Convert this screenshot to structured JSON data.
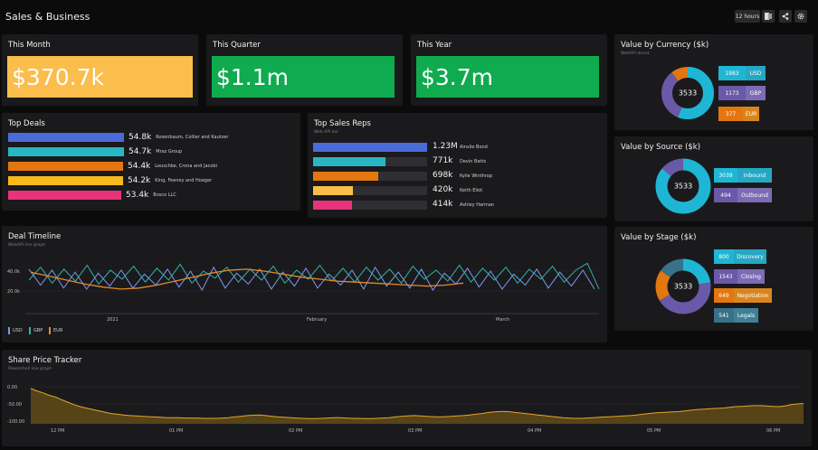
{
  "header": {
    "title": "Sales & Business",
    "time_range": "12 hours"
  },
  "colors": {
    "yellow": "#fbbd4c",
    "green": "#10ab4f",
    "blue": "#4b6bd9",
    "teal": "#28b7c2",
    "orange": "#e4760f",
    "amber": "#f7b91e",
    "pink": "#e8327a",
    "cyan": "#1fb6d5",
    "purple": "#6a59a8",
    "slate": "#37718a"
  },
  "kpis": [
    {
      "title": "This Month",
      "value": "$370.7k"
    },
    {
      "title": "This Quarter",
      "value": "$1.1m"
    },
    {
      "title": "This Year",
      "value": "$3.7m"
    }
  ],
  "top_deals": {
    "title": "Top Deals",
    "items": [
      {
        "value": "54.8k",
        "name": "Rosenbaum, Collier and Kautzer",
        "fraction": 1.0
      },
      {
        "value": "54.7k",
        "name": "Mraz Group",
        "fraction": 0.99
      },
      {
        "value": "54.4k",
        "name": "Leuschke, Crona and Jacobi",
        "fraction": 0.98
      },
      {
        "value": "54.2k",
        "name": "King, Feeney and Hoeger",
        "fraction": 0.97
      },
      {
        "value": "53.4k",
        "name": "Bosco LLC",
        "fraction": 0.96
      }
    ]
  },
  "top_reps": {
    "title": "Top Sales Reps",
    "subtitle": "Web API bar",
    "items": [
      {
        "value": "1.23M",
        "name": "Ainslie Bond",
        "fraction": 1.0
      },
      {
        "value": "771k",
        "name": "Devin Batts",
        "fraction": 0.63
      },
      {
        "value": "698k",
        "name": "Kylie Winthrop",
        "fraction": 0.57
      },
      {
        "value": "420k",
        "name": "Keith Eliot",
        "fraction": 0.35
      },
      {
        "value": "414k",
        "name": "Ashley Harman",
        "fraction": 0.34
      }
    ]
  },
  "currency": {
    "title": "Value by Currency ($k)",
    "subtitle": "WebAPI donut",
    "total": "3533",
    "items": [
      {
        "value": "1983",
        "label": "USD"
      },
      {
        "value": "1173",
        "label": "GBP"
      },
      {
        "value": "377",
        "label": "EUR"
      }
    ]
  },
  "source": {
    "title": "Value by Source ($k)",
    "total": "3533",
    "items": [
      {
        "value": "3039",
        "label": "Inbound"
      },
      {
        "value": "494",
        "label": "Outbound"
      }
    ]
  },
  "stage": {
    "title": "Value by Stage ($k)",
    "total": "3533",
    "items": [
      {
        "value": "800",
        "label": "Discovery"
      },
      {
        "value": "1543",
        "label": "Closing"
      },
      {
        "value": "649",
        "label": "Negotiation"
      },
      {
        "value": "541",
        "label": "Legals"
      }
    ]
  },
  "timeline": {
    "title": "Deal Timeline",
    "subtitle": "WebAPI line graph",
    "yticks": [
      "40.0k",
      "20.0k"
    ],
    "xticks": [
      "2021",
      "February",
      "March"
    ],
    "legend": [
      "USD",
      "GBP",
      "EUR"
    ]
  },
  "share": {
    "title": "Share Price Tracker",
    "subtitle": "Powershell line graph",
    "yticks": [
      "0.00",
      "-50.00",
      "-100.00"
    ],
    "xticks": [
      "12 PM",
      "01 PM",
      "02 PM",
      "03 PM",
      "04 PM",
      "05 PM",
      "06 PM"
    ]
  },
  "chart_data": [
    {
      "type": "line",
      "title": "Deal Timeline",
      "x_range": [
        "2021-01-01",
        "2021-03-31"
      ],
      "ylim": [
        10000,
        50000
      ],
      "series": [
        {
          "name": "USD",
          "values": [
            41000,
            25000,
            40000,
            22000,
            38000,
            21000,
            37000,
            24000,
            40000,
            22000,
            36000,
            25000,
            41000,
            23000,
            39000,
            20000,
            43000,
            22000,
            37000,
            26000,
            41000,
            21000,
            38000,
            24000,
            42000,
            22000,
            36000,
            25000,
            40000,
            21000,
            43000,
            24000,
            38000,
            22000,
            41000,
            20000,
            37000,
            26000,
            42000,
            23000,
            39000,
            21000,
            36000,
            25000,
            41000,
            22000,
            38000,
            24000,
            40000,
            21000
          ]
        },
        {
          "name": "GBP",
          "values": [
            30000,
            43000,
            27000,
            41000,
            29000,
            45000,
            26000,
            40000,
            31000,
            44000,
            28000,
            42000,
            30000,
            46000,
            27000,
            39000,
            32000,
            43000,
            28000,
            41000,
            30000,
            44000,
            27000,
            40000,
            31000,
            45000,
            29000,
            42000,
            28000,
            43000,
            30000,
            41000,
            27000,
            44000,
            31000,
            40000,
            29000,
            45000,
            28000,
            42000,
            30000,
            43000,
            27000,
            41000,
            31000,
            44000,
            28000,
            40000,
            47000,
            21000
          ]
        },
        {
          "name": "EUR",
          "values": [
            38000,
            34000,
            30000,
            26000,
            23000,
            21000,
            22000,
            25000,
            29000,
            33000,
            37000,
            40000,
            41000,
            39000,
            36000,
            33000,
            31000,
            29000,
            28000,
            27000,
            26000,
            25000,
            24000,
            25000,
            27000
          ]
        }
      ]
    },
    {
      "type": "area",
      "title": "Share Price Tracker",
      "x_range": [
        "11:30",
        "18:25"
      ],
      "ylim": [
        -110,
        10
      ],
      "series": [
        {
          "name": "Share price",
          "values": [
            -5,
            -12,
            -18,
            -25,
            -30,
            -38,
            -45,
            -52,
            -58,
            -62,
            -66,
            -70,
            -74,
            -78,
            -80,
            -82,
            -84,
            -85,
            -86,
            -87,
            -88,
            -89,
            -90,
            -90,
            -90,
            -91,
            -91,
            -91,
            -92,
            -92,
            -92,
            -91,
            -90,
            -88,
            -86,
            -84,
            -83,
            -82,
            -84,
            -86,
            -88,
            -89,
            -90,
            -91,
            -92,
            -93,
            -93,
            -92,
            -91,
            -90,
            -90,
            -91,
            -92,
            -92,
            -93,
            -93,
            -92,
            -91,
            -90,
            -88,
            -86,
            -85,
            -84,
            -85,
            -86,
            -87,
            -88,
            -87,
            -86,
            -85,
            -84,
            -82,
            -80,
            -78,
            -75,
            -73,
            -72,
            -72,
            -74,
            -76,
            -78,
            -80,
            -82,
            -84,
            -86,
            -88,
            -90,
            -91,
            -92,
            -92,
            -91,
            -90,
            -89,
            -88,
            -87,
            -86,
            -85,
            -84,
            -82,
            -80,
            -78,
            -76,
            -75,
            -74,
            -73,
            -72,
            -70,
            -68,
            -66,
            -65,
            -64,
            -63,
            -62,
            -60,
            -58,
            -57,
            -56,
            -55,
            -55,
            -56,
            -57,
            -58,
            -56,
            -52,
            -50,
            -49
          ]
        }
      ]
    }
  ]
}
